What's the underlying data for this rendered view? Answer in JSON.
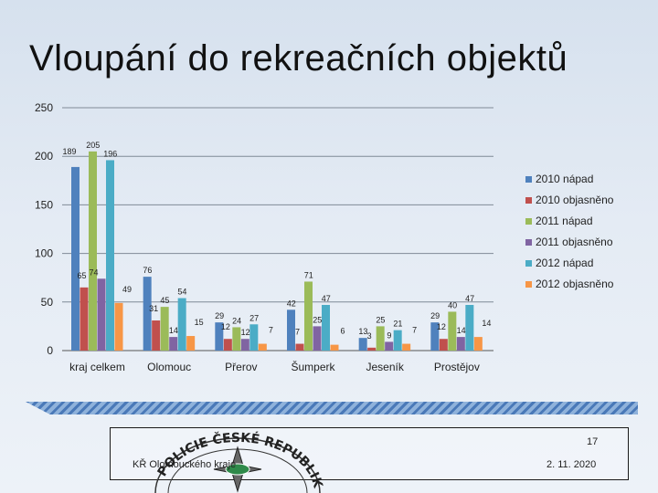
{
  "title": "Vloupání do rekreačních objektů",
  "chart_data": {
    "type": "bar",
    "categories": [
      "kraj celkem",
      "Olomouc",
      "Přerov",
      "Šumperk",
      "Jeseník",
      "Prostějov"
    ],
    "ylim": [
      0,
      250
    ],
    "yticks": [
      "0",
      "50",
      "100",
      "150",
      "200",
      "250"
    ],
    "legend_position": "right",
    "grid": true,
    "series": [
      {
        "name": "2010 nápad",
        "color": "#4f81bd",
        "values": [
          189,
          76,
          29,
          42,
          13,
          29
        ],
        "labels": [
          "189",
          "76",
          "29",
          "42",
          "13",
          "29"
        ]
      },
      {
        "name": "2010 objasněno",
        "color": "#c0504d",
        "values": [
          65,
          31,
          12,
          7,
          3,
          12
        ],
        "labels": [
          "65",
          "31",
          "12",
          "7",
          "3",
          "12"
        ]
      },
      {
        "name": "2011 nápad",
        "color": "#9bbb59",
        "values": [
          205,
          45,
          24,
          71,
          25,
          40
        ],
        "labels": [
          "205",
          "45",
          "24",
          "71",
          "25",
          "40"
        ]
      },
      {
        "name": "2011 objasněno",
        "color": "#8064a2",
        "values": [
          74,
          14,
          12,
          25,
          9,
          14
        ],
        "labels": [
          "74",
          "14",
          "12",
          "25",
          "9",
          "14"
        ]
      },
      {
        "name": "2012 nápad",
        "color": "#4bacc6",
        "values": [
          196,
          54,
          27,
          47,
          21,
          47
        ],
        "labels": [
          "196",
          "54",
          "27",
          "47",
          "21",
          "47"
        ]
      },
      {
        "name": "2012 objasněno",
        "color": "#f79646",
        "values": [
          49,
          15,
          7,
          6,
          7,
          14
        ],
        "labels": [
          "49",
          "15",
          "7",
          "6",
          "7",
          "14"
        ]
      }
    ]
  },
  "footer": {
    "org": "KŘ Olomouckého kraje",
    "page": "17",
    "date": "2. 11. 2020",
    "seal_text": "POLICIE ČESKÉ REPUBLIKY"
  }
}
